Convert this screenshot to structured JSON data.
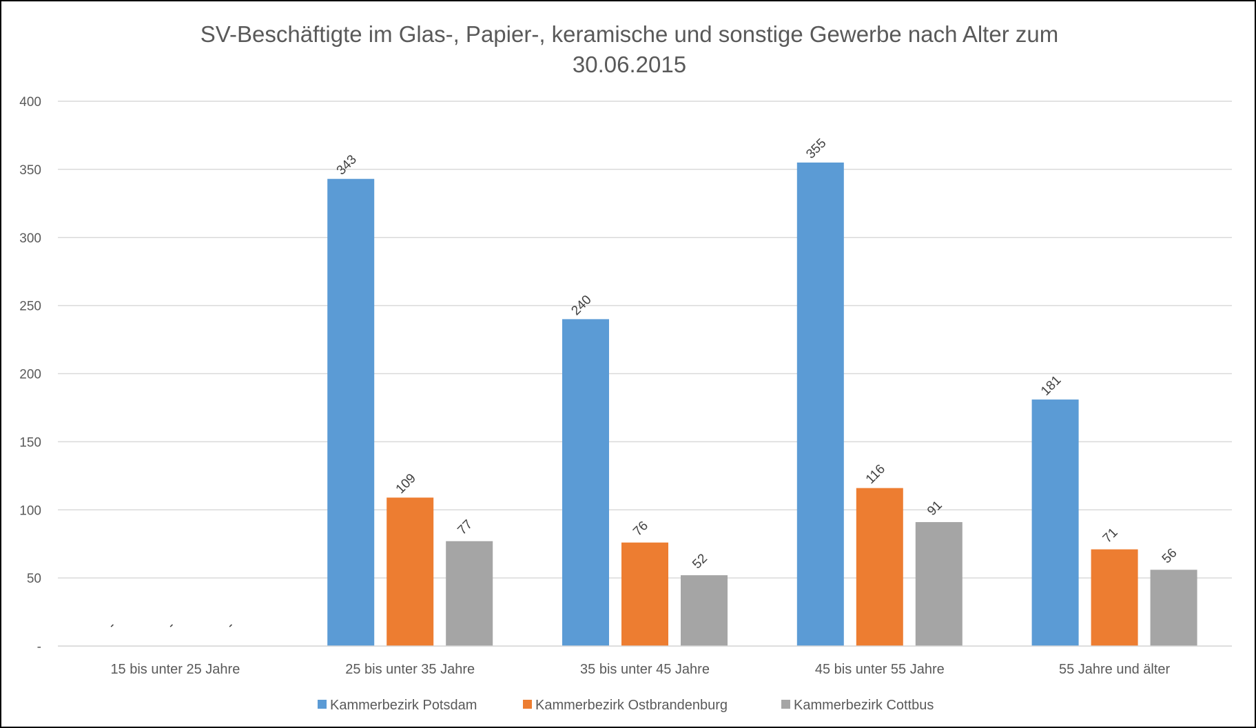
{
  "chart_data": {
    "type": "bar",
    "title": [
      "SV-Beschäftigte im Glas-, Papier-, keramische und sonstige Gewerbe nach Alter zum",
      "30.06.2015"
    ],
    "xlabel": "",
    "ylabel": "",
    "ylim": [
      0,
      400
    ],
    "yticks": [
      0,
      50,
      100,
      150,
      200,
      250,
      300,
      350,
      400
    ],
    "ytick_labels": [
      "-",
      "50",
      "100",
      "150",
      "200",
      "250",
      "300",
      "350",
      "400"
    ],
    "grid": true,
    "legend_position": "bottom",
    "categories": [
      "15 bis unter 25 Jahre",
      "25 bis unter 35 Jahre",
      "35 bis unter 45 Jahre",
      "45 bis unter 55 Jahre",
      "55 Jahre und älter"
    ],
    "series": [
      {
        "name": "Kammerbezirk Potsdam",
        "color": "#5B9BD5",
        "values": [
          0,
          343,
          240,
          355,
          181
        ],
        "labels": [
          "-",
          "343",
          "240",
          "355",
          "181"
        ]
      },
      {
        "name": "Kammerbezirk Ostbrandenburg",
        "color": "#ED7D31",
        "values": [
          0,
          109,
          76,
          116,
          71
        ],
        "labels": [
          "-",
          "109",
          "76",
          "116",
          "71"
        ]
      },
      {
        "name": "Kammerbezirk Cottbus",
        "color": "#A5A5A5",
        "values": [
          0,
          77,
          52,
          91,
          56
        ],
        "labels": [
          "-",
          "77",
          "52",
          "91",
          "56"
        ]
      }
    ]
  }
}
